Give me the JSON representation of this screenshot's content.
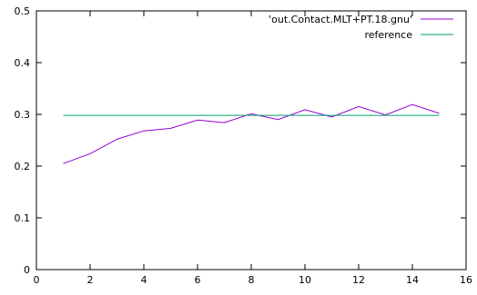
{
  "chart_data": {
    "type": "line",
    "title": "",
    "xlabel": "",
    "ylabel": "",
    "xlim": [
      0,
      16
    ],
    "ylim": [
      0,
      0.5
    ],
    "xticks": [
      "0",
      "2",
      "4",
      "6",
      "8",
      "10",
      "12",
      "14",
      "16"
    ],
    "yticks": [
      "0",
      "0.1",
      "0.2",
      "0.3",
      "0.4",
      "0.5"
    ],
    "grid": false,
    "legend_position": "top-right",
    "series": [
      {
        "name": "'out.Contact.MLT+PT.18.gnu'",
        "color": "#9400d3",
        "x": [
          1,
          2,
          3,
          4,
          5,
          6,
          7,
          8,
          9,
          10,
          11,
          12,
          13,
          14,
          15
        ],
        "y": [
          0.205,
          0.224,
          0.252,
          0.268,
          0.273,
          0.289,
          0.284,
          0.301,
          0.29,
          0.309,
          0.295,
          0.315,
          0.299,
          0.319,
          0.302
        ]
      },
      {
        "name": "reference",
        "color": "#009e73",
        "x": [
          1,
          15
        ],
        "y": [
          0.298,
          0.298
        ]
      }
    ]
  }
}
